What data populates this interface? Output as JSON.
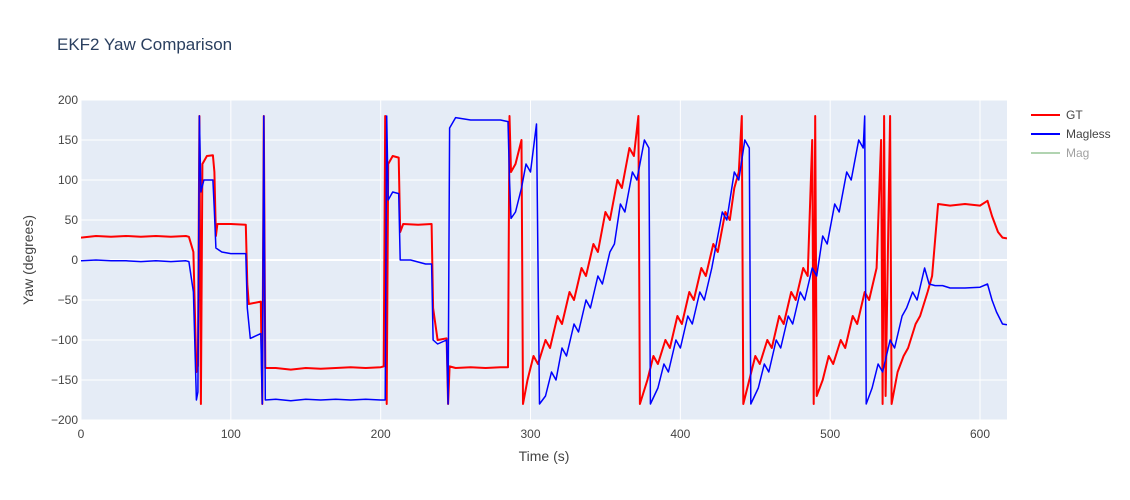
{
  "chart_data": {
    "type": "line",
    "title": "EKF2 Yaw Comparison",
    "xlabel": "Time (s)",
    "ylabel": "Yaw (degrees)",
    "xlim": [
      0,
      618
    ],
    "ylim": [
      -200,
      200
    ],
    "xticks": [
      0,
      100,
      200,
      300,
      400,
      500,
      600
    ],
    "yticks": [
      200,
      150,
      100,
      50,
      0,
      -50,
      -100,
      -150,
      -200
    ],
    "ytick_labels": [
      "200",
      "150",
      "100",
      "50",
      "0",
      "−50",
      "−100",
      "−150",
      "−200"
    ],
    "grid": true,
    "legend_position": "top-right",
    "series": [
      {
        "name": "GT",
        "color": "#ff0000",
        "visible": true,
        "points": [
          [
            0,
            28
          ],
          [
            10,
            30
          ],
          [
            20,
            29
          ],
          [
            30,
            30
          ],
          [
            40,
            29
          ],
          [
            50,
            30
          ],
          [
            60,
            29
          ],
          [
            70,
            30
          ],
          [
            72,
            29
          ],
          [
            75,
            10
          ],
          [
            77,
            -140
          ],
          [
            78,
            -132
          ],
          [
            79,
            180
          ],
          [
            80,
            -180
          ],
          [
            81,
            120
          ],
          [
            84,
            130
          ],
          [
            88,
            131
          ],
          [
            89,
            110
          ],
          [
            90,
            30
          ],
          [
            91,
            45
          ],
          [
            100,
            45
          ],
          [
            110,
            44
          ],
          [
            111,
            -30
          ],
          [
            112,
            -55
          ],
          [
            120,
            -52
          ],
          [
            121,
            -180
          ],
          [
            122,
            180
          ],
          [
            123,
            -135
          ],
          [
            130,
            -135
          ],
          [
            140,
            -137
          ],
          [
            150,
            -135
          ],
          [
            160,
            -136
          ],
          [
            170,
            -135
          ],
          [
            180,
            -134
          ],
          [
            190,
            -135
          ],
          [
            200,
            -134
          ],
          [
            202,
            -133
          ],
          [
            203,
            180
          ],
          [
            204,
            -180
          ],
          [
            205,
            120
          ],
          [
            208,
            130
          ],
          [
            212,
            128
          ],
          [
            213,
            35
          ],
          [
            215,
            45
          ],
          [
            225,
            44
          ],
          [
            234,
            45
          ],
          [
            235,
            -60
          ],
          [
            238,
            -100
          ],
          [
            244,
            -98
          ],
          [
            245,
            -180
          ],
          [
            246,
            -133
          ],
          [
            250,
            -135
          ],
          [
            260,
            -134
          ],
          [
            270,
            -135
          ],
          [
            280,
            -134
          ],
          [
            285,
            -134
          ],
          [
            286,
            180
          ],
          [
            287,
            110
          ],
          [
            290,
            120
          ],
          [
            294,
            150
          ],
          [
            295,
            -180
          ],
          [
            298,
            -150
          ],
          [
            302,
            -120
          ],
          [
            305,
            -130
          ],
          [
            310,
            -100
          ],
          [
            313,
            -110
          ],
          [
            318,
            -70
          ],
          [
            321,
            -80
          ],
          [
            326,
            -40
          ],
          [
            329,
            -50
          ],
          [
            334,
            -10
          ],
          [
            337,
            -20
          ],
          [
            342,
            20
          ],
          [
            345,
            10
          ],
          [
            350,
            60
          ],
          [
            353,
            50
          ],
          [
            358,
            100
          ],
          [
            361,
            90
          ],
          [
            366,
            140
          ],
          [
            369,
            130
          ],
          [
            372,
            180
          ],
          [
            373,
            -180
          ],
          [
            378,
            -150
          ],
          [
            382,
            -120
          ],
          [
            385,
            -130
          ],
          [
            390,
            -100
          ],
          [
            393,
            -110
          ],
          [
            398,
            -70
          ],
          [
            401,
            -80
          ],
          [
            406,
            -40
          ],
          [
            409,
            -50
          ],
          [
            414,
            -10
          ],
          [
            417,
            -20
          ],
          [
            422,
            20
          ],
          [
            425,
            10
          ],
          [
            430,
            60
          ],
          [
            433,
            50
          ],
          [
            436,
            90
          ],
          [
            439,
            110
          ],
          [
            441,
            180
          ],
          [
            442,
            -180
          ],
          [
            446,
            -150
          ],
          [
            450,
            -120
          ],
          [
            453,
            -130
          ],
          [
            458,
            -100
          ],
          [
            461,
            -110
          ],
          [
            466,
            -70
          ],
          [
            469,
            -80
          ],
          [
            474,
            -40
          ],
          [
            477,
            -50
          ],
          [
            482,
            -10
          ],
          [
            485,
            -20
          ],
          [
            488,
            150
          ],
          [
            489,
            -180
          ],
          [
            490,
            180
          ],
          [
            491,
            -170
          ],
          [
            495,
            -150
          ],
          [
            499,
            -120
          ],
          [
            502,
            -130
          ],
          [
            507,
            -100
          ],
          [
            510,
            -110
          ],
          [
            515,
            -70
          ],
          [
            518,
            -80
          ],
          [
            523,
            -40
          ],
          [
            526,
            -50
          ],
          [
            531,
            -10
          ],
          [
            534,
            150
          ],
          [
            535,
            -180
          ],
          [
            536,
            180
          ],
          [
            537,
            -170
          ],
          [
            540,
            180
          ],
          [
            541,
            -180
          ],
          [
            545,
            -140
          ],
          [
            549,
            -120
          ],
          [
            552,
            -110
          ],
          [
            557,
            -80
          ],
          [
            560,
            -70
          ],
          [
            565,
            -40
          ],
          [
            568,
            -20
          ],
          [
            572,
            70
          ],
          [
            580,
            68
          ],
          [
            590,
            70
          ],
          [
            600,
            68
          ],
          [
            605,
            74
          ],
          [
            608,
            55
          ],
          [
            612,
            35
          ],
          [
            615,
            28
          ],
          [
            618,
            27
          ]
        ]
      },
      {
        "name": "Magless",
        "color": "#0000ff",
        "visible": true,
        "points": [
          [
            0,
            -1
          ],
          [
            10,
            0
          ],
          [
            20,
            -1
          ],
          [
            30,
            -1
          ],
          [
            40,
            -2
          ],
          [
            50,
            -1
          ],
          [
            60,
            -2
          ],
          [
            70,
            -1
          ],
          [
            72,
            -2
          ],
          [
            75,
            -40
          ],
          [
            77,
            -175
          ],
          [
            78,
            -165
          ],
          [
            79,
            180
          ],
          [
            80,
            85
          ],
          [
            82,
            100
          ],
          [
            88,
            100
          ],
          [
            89,
            60
          ],
          [
            90,
            15
          ],
          [
            94,
            10
          ],
          [
            100,
            8
          ],
          [
            110,
            8
          ],
          [
            111,
            -60
          ],
          [
            113,
            -98
          ],
          [
            120,
            -92
          ],
          [
            121,
            -180
          ],
          [
            122,
            180
          ],
          [
            123,
            -175
          ],
          [
            130,
            -174
          ],
          [
            140,
            -176
          ],
          [
            150,
            -174
          ],
          [
            160,
            -175
          ],
          [
            170,
            -174
          ],
          [
            180,
            -175
          ],
          [
            190,
            -174
          ],
          [
            200,
            -175
          ],
          [
            203,
            -175
          ],
          [
            204,
            180
          ],
          [
            205,
            75
          ],
          [
            208,
            85
          ],
          [
            212,
            83
          ],
          [
            213,
            0
          ],
          [
            220,
            0
          ],
          [
            230,
            -5
          ],
          [
            234,
            -5
          ],
          [
            235,
            -100
          ],
          [
            238,
            -105
          ],
          [
            244,
            -100
          ],
          [
            245,
            -180
          ],
          [
            246,
            165
          ],
          [
            250,
            178
          ],
          [
            260,
            175
          ],
          [
            270,
            175
          ],
          [
            280,
            175
          ],
          [
            285,
            173
          ],
          [
            286,
            100
          ],
          [
            287,
            52
          ],
          [
            290,
            60
          ],
          [
            294,
            90
          ],
          [
            297,
            120
          ],
          [
            300,
            110
          ],
          [
            304,
            170
          ],
          [
            306,
            -180
          ],
          [
            310,
            -170
          ],
          [
            314,
            -140
          ],
          [
            317,
            -150
          ],
          [
            321,
            -110
          ],
          [
            324,
            -120
          ],
          [
            329,
            -80
          ],
          [
            332,
            -90
          ],
          [
            337,
            -50
          ],
          [
            340,
            -60
          ],
          [
            345,
            -20
          ],
          [
            348,
            -30
          ],
          [
            353,
            10
          ],
          [
            356,
            20
          ],
          [
            360,
            70
          ],
          [
            363,
            60
          ],
          [
            368,
            110
          ],
          [
            371,
            100
          ],
          [
            376,
            150
          ],
          [
            379,
            140
          ],
          [
            380,
            -180
          ],
          [
            385,
            -160
          ],
          [
            389,
            -130
          ],
          [
            392,
            -140
          ],
          [
            397,
            -100
          ],
          [
            400,
            -110
          ],
          [
            405,
            -70
          ],
          [
            408,
            -80
          ],
          [
            413,
            -40
          ],
          [
            416,
            -50
          ],
          [
            421,
            -10
          ],
          [
            424,
            20
          ],
          [
            428,
            60
          ],
          [
            431,
            50
          ],
          [
            436,
            110
          ],
          [
            439,
            100
          ],
          [
            443,
            150
          ],
          [
            446,
            140
          ],
          [
            447,
            -180
          ],
          [
            452,
            -160
          ],
          [
            456,
            -130
          ],
          [
            459,
            -140
          ],
          [
            464,
            -100
          ],
          [
            467,
            -110
          ],
          [
            472,
            -70
          ],
          [
            475,
            -80
          ],
          [
            480,
            -40
          ],
          [
            483,
            -50
          ],
          [
            488,
            -10
          ],
          [
            491,
            -20
          ],
          [
            495,
            30
          ],
          [
            498,
            20
          ],
          [
            503,
            70
          ],
          [
            506,
            60
          ],
          [
            511,
            110
          ],
          [
            514,
            100
          ],
          [
            519,
            150
          ],
          [
            522,
            140
          ],
          [
            523,
            180
          ],
          [
            524,
            -180
          ],
          [
            528,
            -160
          ],
          [
            532,
            -130
          ],
          [
            535,
            -140
          ],
          [
            540,
            -100
          ],
          [
            543,
            -110
          ],
          [
            548,
            -70
          ],
          [
            551,
            -60
          ],
          [
            555,
            -40
          ],
          [
            558,
            -50
          ],
          [
            563,
            -10
          ],
          [
            566,
            -30
          ],
          [
            570,
            -32
          ],
          [
            575,
            -32
          ],
          [
            580,
            -35
          ],
          [
            590,
            -35
          ],
          [
            600,
            -34
          ],
          [
            605,
            -30
          ],
          [
            608,
            -50
          ],
          [
            611,
            -65
          ],
          [
            615,
            -80
          ],
          [
            618,
            -81
          ]
        ]
      },
      {
        "name": "Mag",
        "color": "#66aa66",
        "visible": false,
        "points": []
      }
    ]
  }
}
